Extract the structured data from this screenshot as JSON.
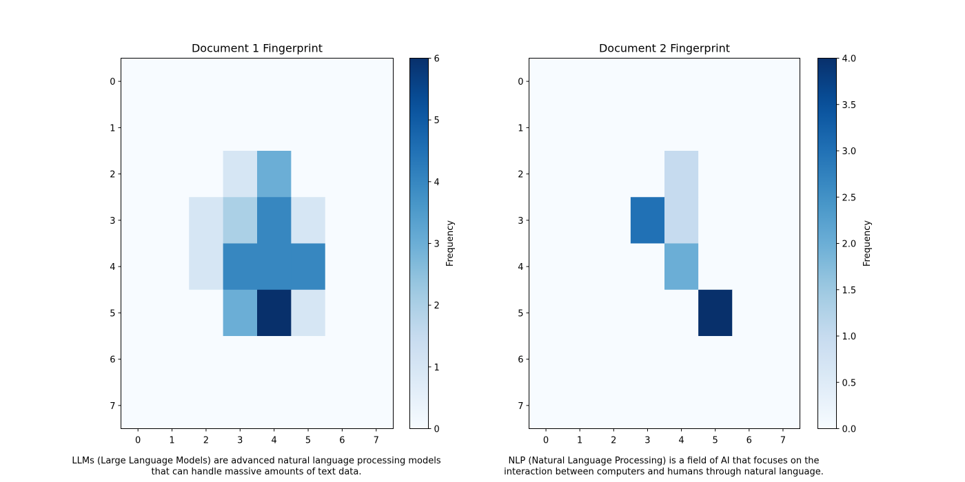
{
  "chart_data": [
    {
      "type": "heatmap",
      "title": "Document 1 Fingerprint",
      "x_ticks": [
        "0",
        "1",
        "2",
        "3",
        "4",
        "5",
        "6",
        "7"
      ],
      "y_ticks": [
        "0",
        "1",
        "2",
        "3",
        "4",
        "5",
        "6",
        "7"
      ],
      "values": [
        [
          0,
          0,
          0,
          0,
          0,
          0,
          0,
          0
        ],
        [
          0,
          0,
          0,
          0,
          0,
          0,
          0,
          0
        ],
        [
          0,
          0,
          0,
          1,
          3,
          0,
          0,
          0
        ],
        [
          0,
          0,
          1,
          2,
          4,
          1,
          0,
          0
        ],
        [
          0,
          0,
          1,
          4,
          4,
          4,
          0,
          0
        ],
        [
          0,
          0,
          0,
          3,
          6,
          1,
          0,
          0
        ],
        [
          0,
          0,
          0,
          0,
          0,
          0,
          0,
          0
        ],
        [
          0,
          0,
          0,
          0,
          0,
          0,
          0,
          0
        ]
      ],
      "colorbar": {
        "label": "Frequency",
        "range": [
          0,
          6
        ],
        "ticks": [
          "0",
          "1",
          "2",
          "3",
          "4",
          "5",
          "6"
        ]
      },
      "colormap": "Blues",
      "caption_lines": [
        "LLMs (Large Language Models) are advanced natural language processing models",
        "that can handle massive amounts of text data."
      ]
    },
    {
      "type": "heatmap",
      "title": "Document 2 Fingerprint",
      "x_ticks": [
        "0",
        "1",
        "2",
        "3",
        "4",
        "5",
        "6",
        "7"
      ],
      "y_ticks": [
        "0",
        "1",
        "2",
        "3",
        "4",
        "5",
        "6",
        "7"
      ],
      "values": [
        [
          0,
          0,
          0,
          0,
          0,
          0,
          0,
          0
        ],
        [
          0,
          0,
          0,
          0,
          0,
          0,
          0,
          0
        ],
        [
          0,
          0,
          0,
          0,
          1,
          0,
          0,
          0
        ],
        [
          0,
          0,
          0,
          3,
          1,
          0,
          0,
          0
        ],
        [
          0,
          0,
          0,
          0,
          2,
          0,
          0,
          0
        ],
        [
          0,
          0,
          0,
          0,
          0,
          4,
          0,
          0
        ],
        [
          0,
          0,
          0,
          0,
          0,
          0,
          0,
          0
        ],
        [
          0,
          0,
          0,
          0,
          0,
          0,
          0,
          0
        ]
      ],
      "colorbar": {
        "label": "Frequency",
        "range": [
          0,
          4
        ],
        "ticks": [
          "0.0",
          "0.5",
          "1.0",
          "1.5",
          "2.0",
          "2.5",
          "3.0",
          "3.5",
          "4.0"
        ]
      },
      "colormap": "Blues",
      "caption_lines": [
        "NLP (Natural Language Processing) is a field of AI that focuses on the",
        "interaction between computers and humans through natural language."
      ]
    }
  ]
}
